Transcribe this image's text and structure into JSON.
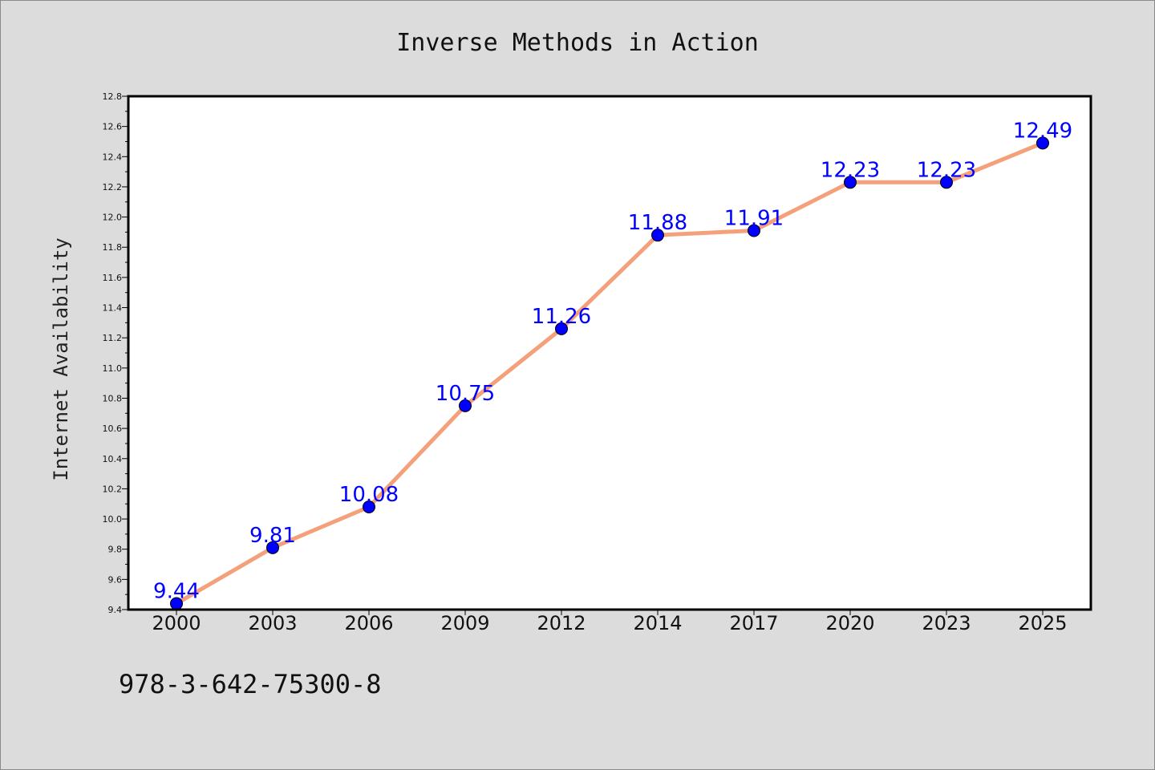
{
  "chart_data": {
    "type": "line",
    "title": "Inverse Methods in Action",
    "xlabel": "",
    "ylabel": "Internet Availability",
    "categories": [
      "2000",
      "2003",
      "2006",
      "2009",
      "2012",
      "2014",
      "2017",
      "2020",
      "2023",
      "2025"
    ],
    "values": [
      9.44,
      9.81,
      10.08,
      10.75,
      11.26,
      11.88,
      11.91,
      12.23,
      12.23,
      12.49
    ],
    "data_labels": [
      "9.44",
      "9.81",
      "10.08",
      "10.75",
      "11.26",
      "11.88",
      "11.91",
      "12.23",
      "12.23",
      "12.49"
    ],
    "ylim": [
      9.4,
      12.8
    ],
    "yticks": [
      "9.4",
      "9.6",
      "9.8",
      "10.0",
      "10.2",
      "10.4",
      "10.6",
      "10.8",
      "11.0",
      "11.2",
      "11.4",
      "11.6",
      "11.8",
      "12.0",
      "12.2",
      "12.4",
      "12.6",
      "12.8"
    ],
    "grid": false,
    "legend": "none",
    "colors": {
      "line": "#f4a07a",
      "marker": "#0000ff",
      "label": "#0000ff",
      "background": "#dcdcdc",
      "plot_background": "#ffffff"
    }
  },
  "footer": {
    "isbn": "978-3-642-75300-8"
  }
}
